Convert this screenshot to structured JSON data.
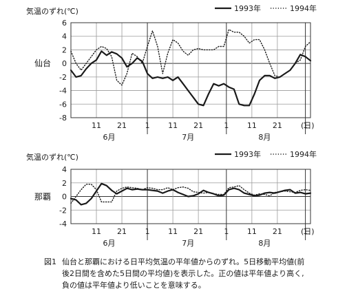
{
  "chart_data": [
    {
      "type": "line",
      "station": "仙台",
      "ylabel": "気温のずれ(℃)",
      "yticks": [
        6,
        4,
        2,
        0,
        -2,
        -4,
        -6,
        -8
      ],
      "ylim": [
        -8,
        6
      ],
      "xlim": [
        0,
        94
      ],
      "xticks": [
        {
          "day": 10,
          "label": "11"
        },
        {
          "day": 20,
          "label": "21"
        },
        {
          "day": 30,
          "label": "1"
        },
        {
          "day": 40,
          "label": "11"
        },
        {
          "day": 50,
          "label": "21"
        },
        {
          "day": 61,
          "label": "1"
        },
        {
          "day": 71,
          "label": "11"
        },
        {
          "day": 81,
          "label": "21"
        },
        {
          "day": 92,
          "label": "1"
        }
      ],
      "day_unit": "(日)",
      "months": [
        {
          "day": 15,
          "label": "6月"
        },
        {
          "day": 46,
          "label": "7月"
        },
        {
          "day": 76,
          "label": "8月"
        }
      ],
      "month_boundaries": [
        30,
        61,
        92
      ],
      "legend": {
        "position": "top-right"
      },
      "series": [
        {
          "name": "1993年",
          "style": "solid",
          "color": "#1a1a1a",
          "x": [
            0,
            2,
            4,
            6,
            8,
            10,
            12,
            14,
            16,
            18,
            20,
            22,
            24,
            26,
            28,
            30,
            32,
            34,
            36,
            38,
            40,
            42,
            44,
            46,
            48,
            50,
            52,
            54,
            56,
            58,
            60,
            62,
            64,
            66,
            68,
            70,
            72,
            74,
            76,
            78,
            80,
            82,
            84,
            86,
            88,
            90,
            92,
            94
          ],
          "y": [
            -1.0,
            -2.0,
            -1.8,
            -0.8,
            0.0,
            0.5,
            1.8,
            1.2,
            1.7,
            1.4,
            0.8,
            -0.5,
            0.0,
            0.8,
            0.3,
            -1.5,
            -2.2,
            -2.0,
            -2.2,
            -2.0,
            -2.5,
            -2.0,
            -3.0,
            -4.0,
            -5.0,
            -6.0,
            -6.2,
            -4.5,
            -3.0,
            -3.3,
            -3.0,
            -3.5,
            -3.8,
            -6.0,
            -6.2,
            -6.2,
            -4.5,
            -2.5,
            -1.8,
            -1.8,
            -2.2,
            -2.0,
            -1.5,
            -1.0,
            0.0,
            1.3,
            1.0,
            0.4
          ]
        },
        {
          "name": "1994年",
          "style": "dotted",
          "color": "#1a1a1a",
          "x": [
            0,
            2,
            4,
            6,
            8,
            10,
            12,
            14,
            16,
            18,
            20,
            22,
            24,
            26,
            28,
            30,
            32,
            34,
            36,
            38,
            40,
            42,
            44,
            46,
            48,
            50,
            52,
            54,
            56,
            58,
            60,
            62,
            64,
            66,
            68,
            70,
            72,
            74,
            76,
            78,
            80,
            82,
            84,
            86,
            88,
            90,
            92,
            94
          ],
          "y": [
            1.8,
            0.0,
            -1.0,
            0.0,
            1.0,
            2.0,
            2.5,
            2.2,
            1.0,
            -2.5,
            -3.2,
            -1.5,
            1.5,
            1.0,
            0.0,
            2.5,
            4.8,
            2.5,
            -1.5,
            1.5,
            3.5,
            3.0,
            1.8,
            1.2,
            2.0,
            2.2,
            2.0,
            2.0,
            2.0,
            2.5,
            2.5,
            5.0,
            4.6,
            4.6,
            4.0,
            3.0,
            3.5,
            3.5,
            2.0,
            0.0,
            -1.8,
            -2.0,
            -1.5,
            -1.0,
            0.0,
            0.5,
            2.5,
            3.2
          ]
        }
      ]
    },
    {
      "type": "line",
      "station": "那覇",
      "ylabel": "気温のずれ(℃)",
      "yticks": [
        4,
        2,
        0,
        -2,
        -4
      ],
      "ylim": [
        -4,
        4
      ],
      "xlim": [
        0,
        94
      ],
      "xticks": [
        {
          "day": 10,
          "label": "11"
        },
        {
          "day": 20,
          "label": "21"
        },
        {
          "day": 30,
          "label": "1"
        },
        {
          "day": 40,
          "label": "11"
        },
        {
          "day": 50,
          "label": "21"
        },
        {
          "day": 61,
          "label": "1"
        },
        {
          "day": 71,
          "label": "11"
        },
        {
          "day": 81,
          "label": "21"
        },
        {
          "day": 92,
          "label": "1"
        }
      ],
      "day_unit": "(日)",
      "months": [
        {
          "day": 15,
          "label": "6月"
        },
        {
          "day": 46,
          "label": "7月"
        },
        {
          "day": 76,
          "label": "8月"
        }
      ],
      "month_boundaries": [
        30,
        61,
        92
      ],
      "legend": {
        "position": "top-right"
      },
      "series": [
        {
          "name": "1993年",
          "style": "solid",
          "color": "#1a1a1a",
          "x": [
            0,
            2,
            4,
            6,
            8,
            10,
            12,
            14,
            16,
            18,
            20,
            22,
            24,
            26,
            28,
            30,
            32,
            34,
            36,
            38,
            40,
            42,
            44,
            46,
            48,
            50,
            52,
            54,
            56,
            58,
            60,
            62,
            64,
            66,
            68,
            70,
            72,
            74,
            76,
            78,
            80,
            82,
            84,
            86,
            88,
            90,
            92,
            94
          ],
          "y": [
            -0.3,
            -0.5,
            -1.2,
            -1.0,
            -0.3,
            0.8,
            1.9,
            1.6,
            0.9,
            0.4,
            0.8,
            1.2,
            1.0,
            1.1,
            1.0,
            1.0,
            0.9,
            0.8,
            0.5,
            0.8,
            1.0,
            0.6,
            0.3,
            0.0,
            0.1,
            0.4,
            0.9,
            0.6,
            0.4,
            0.1,
            0.2,
            1.0,
            1.2,
            1.0,
            0.5,
            0.3,
            0.1,
            0.2,
            0.5,
            0.6,
            0.5,
            0.7,
            0.9,
            1.0,
            0.5,
            0.6,
            0.4,
            0.5
          ]
        },
        {
          "name": "1994年",
          "style": "dotted",
          "color": "#1a1a1a",
          "x": [
            0,
            2,
            4,
            6,
            8,
            10,
            12,
            14,
            16,
            18,
            20,
            22,
            24,
            26,
            28,
            30,
            32,
            34,
            36,
            38,
            40,
            42,
            44,
            46,
            48,
            50,
            52,
            54,
            56,
            58,
            60,
            62,
            64,
            66,
            68,
            70,
            72,
            74,
            76,
            78,
            80,
            82,
            84,
            86,
            88,
            90,
            92,
            94
          ],
          "y": [
            -1.0,
            0.0,
            1.0,
            1.8,
            1.8,
            1.0,
            -0.8,
            -0.8,
            -0.8,
            0.8,
            1.2,
            1.4,
            1.3,
            1.2,
            1.0,
            1.3,
            1.2,
            1.0,
            1.0,
            1.3,
            1.0,
            1.3,
            1.4,
            1.2,
            0.7,
            0.6,
            0.5,
            0.6,
            0.4,
            0.3,
            0.3,
            1.3,
            1.4,
            1.6,
            1.0,
            0.5,
            0.2,
            0.4,
            0.3,
            0.1,
            0.6,
            0.7,
            0.8,
            0.7,
            0.6,
            0.9,
            1.0,
            0.9
          ]
        }
      ]
    }
  ],
  "caption": {
    "fig_label": "図1",
    "line1": "仙台と那覇における日平均気温の平年値からのずれ。5日移動平均値(前",
    "line2": "後2日間を含めた5日間の平均値)を表示した。正の値は平年値より高く,",
    "line3": "負の値は平年値より低いことを意味する。"
  }
}
